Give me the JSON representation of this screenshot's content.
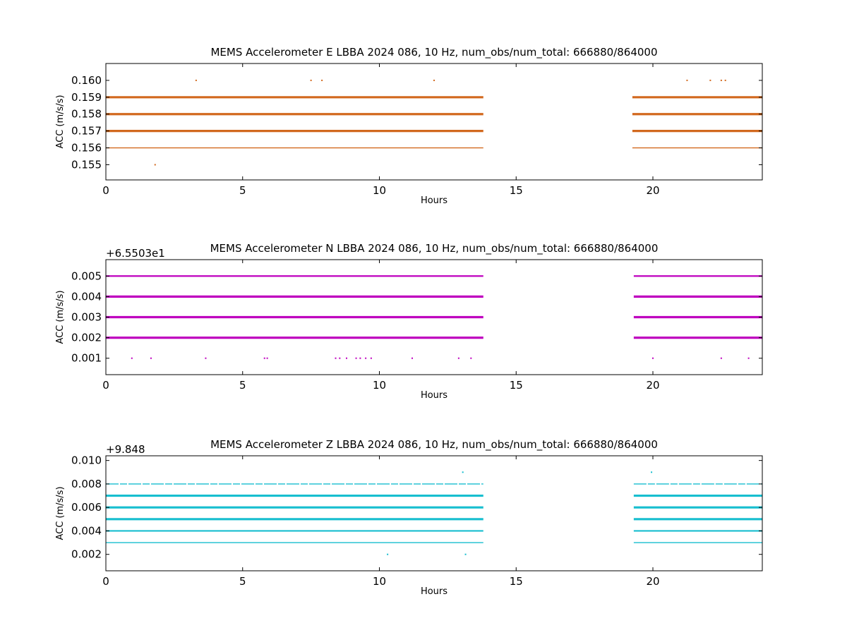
{
  "chart_data": [
    {
      "type": "scatter",
      "title": "MEMS Accelerometer E LBBA 2024 086, 10 Hz, num_obs/num_total: 666880/864000",
      "xlabel": "Hours",
      "ylabel": "ACC (m/s/s)",
      "xlim": [
        0,
        24
      ],
      "ylim": [
        0.1541,
        0.161
      ],
      "x_ticks": [
        0,
        5,
        10,
        15,
        20
      ],
      "y_ticks": [
        0.155,
        0.156,
        0.157,
        0.158,
        0.159,
        0.16
      ],
      "y_tick_labels": [
        "0.155",
        "0.156",
        "0.157",
        "0.158",
        "0.159",
        "0.160"
      ],
      "offset_label": "",
      "color": "#d2691e",
      "gap_hours": [
        13.8,
        19.25
      ],
      "bands": [
        {
          "y": 0.159,
          "weight": "heavy"
        },
        {
          "y": 0.158,
          "weight": "heavy"
        },
        {
          "y": 0.157,
          "weight": "heavy"
        },
        {
          "y": 0.156,
          "weight": "light"
        }
      ],
      "isolated_points": [
        {
          "x": 3.3,
          "y": 0.16
        },
        {
          "x": 7.5,
          "y": 0.16
        },
        {
          "x": 7.9,
          "y": 0.16
        },
        {
          "x": 12.0,
          "y": 0.16
        },
        {
          "x": 21.25,
          "y": 0.16
        },
        {
          "x": 22.1,
          "y": 0.16
        },
        {
          "x": 22.5,
          "y": 0.16
        },
        {
          "x": 22.65,
          "y": 0.16
        },
        {
          "x": 1.8,
          "y": 0.155
        }
      ]
    },
    {
      "type": "scatter",
      "title": "MEMS Accelerometer N LBBA 2024 086, 10 Hz, num_obs/num_total: 666880/864000",
      "xlabel": "Hours",
      "ylabel": "ACC (m/s/s)",
      "xlim": [
        0,
        24
      ],
      "ylim": [
        0.0002,
        0.0058
      ],
      "x_ticks": [
        0,
        5,
        10,
        15,
        20
      ],
      "y_ticks": [
        0.001,
        0.002,
        0.003,
        0.004,
        0.005
      ],
      "y_tick_labels": [
        "0.001",
        "0.002",
        "0.003",
        "0.004",
        "0.005"
      ],
      "offset_label": "+6.5503e1",
      "color": "#bf00bf",
      "gap_hours": [
        13.8,
        19.3
      ],
      "bands": [
        {
          "y": 0.005,
          "weight": "medium"
        },
        {
          "y": 0.004,
          "weight": "heavy"
        },
        {
          "y": 0.003,
          "weight": "heavy"
        },
        {
          "y": 0.002,
          "weight": "heavy"
        }
      ],
      "isolated_points": [
        {
          "x": 0.95,
          "y": 0.001
        },
        {
          "x": 1.65,
          "y": 0.001
        },
        {
          "x": 3.65,
          "y": 0.001
        },
        {
          "x": 5.8,
          "y": 0.001
        },
        {
          "x": 5.9,
          "y": 0.001
        },
        {
          "x": 8.4,
          "y": 0.001
        },
        {
          "x": 8.55,
          "y": 0.001
        },
        {
          "x": 8.8,
          "y": 0.001
        },
        {
          "x": 9.15,
          "y": 0.001
        },
        {
          "x": 9.3,
          "y": 0.001
        },
        {
          "x": 9.5,
          "y": 0.001
        },
        {
          "x": 9.7,
          "y": 0.001
        },
        {
          "x": 11.2,
          "y": 0.001
        },
        {
          "x": 12.9,
          "y": 0.001
        },
        {
          "x": 13.35,
          "y": 0.001
        },
        {
          "x": 20.0,
          "y": 0.001
        },
        {
          "x": 22.5,
          "y": 0.001
        },
        {
          "x": 23.5,
          "y": 0.001
        }
      ]
    },
    {
      "type": "scatter",
      "title": "MEMS Accelerometer Z LBBA 2024 086, 10 Hz, num_obs/num_total: 666880/864000",
      "xlabel": "Hours",
      "ylabel": "ACC (m/s/s)",
      "xlim": [
        0,
        24
      ],
      "ylim": [
        0.0006,
        0.0104
      ],
      "x_ticks": [
        0,
        5,
        10,
        15,
        20
      ],
      "y_ticks": [
        0.002,
        0.004,
        0.006,
        0.008,
        0.01
      ],
      "y_tick_labels": [
        "0.002",
        "0.004",
        "0.006",
        "0.008",
        "0.010"
      ],
      "offset_label": "+9.848",
      "color": "#17becf",
      "gap_hours": [
        13.8,
        19.3
      ],
      "bands": [
        {
          "y": 0.008,
          "weight": "dotted"
        },
        {
          "y": 0.007,
          "weight": "heavy"
        },
        {
          "y": 0.006,
          "weight": "heavy"
        },
        {
          "y": 0.005,
          "weight": "heavy"
        },
        {
          "y": 0.004,
          "weight": "medium"
        },
        {
          "y": 0.003,
          "weight": "light"
        }
      ],
      "isolated_points": [
        {
          "x": 13.05,
          "y": 0.009
        },
        {
          "x": 19.95,
          "y": 0.009
        },
        {
          "x": 10.3,
          "y": 0.002
        },
        {
          "x": 13.15,
          "y": 0.002
        }
      ]
    }
  ]
}
